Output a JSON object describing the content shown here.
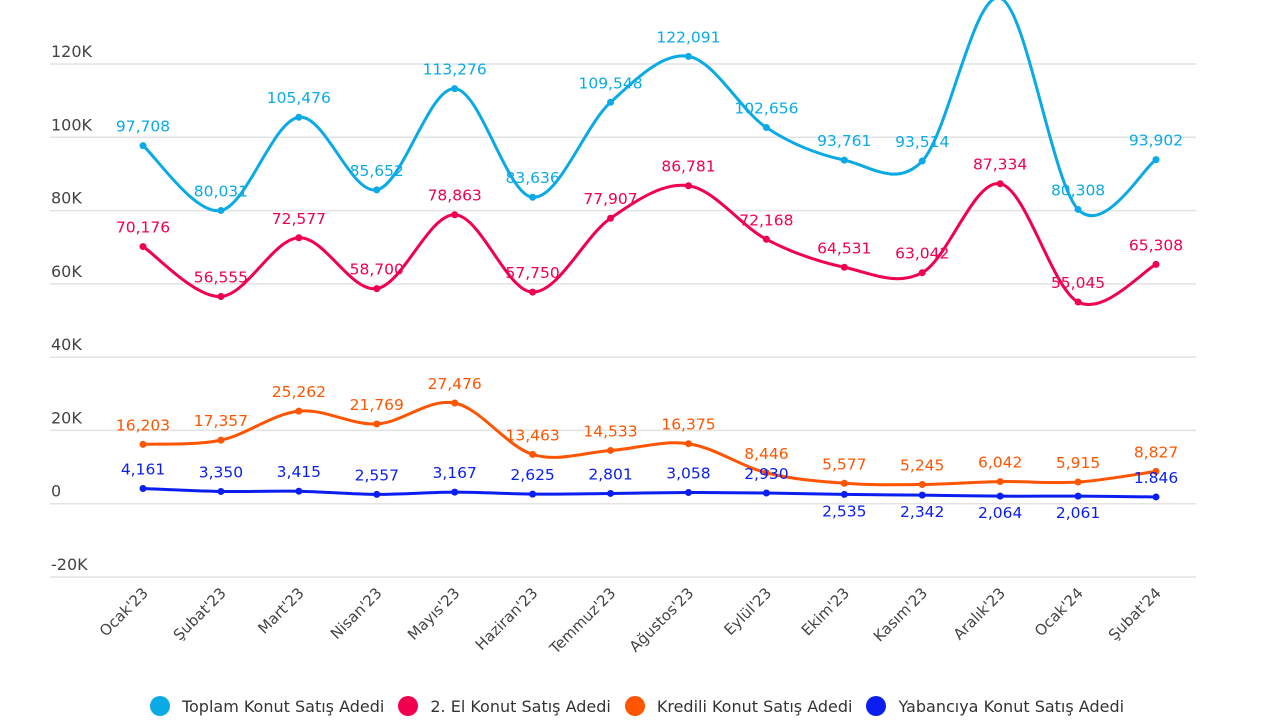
{
  "chart_data": {
    "type": "line",
    "title": "",
    "xlabel": "",
    "ylabel": "",
    "ylim": [
      -20000,
      120000
    ],
    "yticks": [
      {
        "value": -20000,
        "label": "-20K"
      },
      {
        "value": 0,
        "label": "0"
      },
      {
        "value": 20000,
        "label": "20K"
      },
      {
        "value": 40000,
        "label": "40K"
      },
      {
        "value": 60000,
        "label": "60K"
      },
      {
        "value": 80000,
        "label": "80K"
      },
      {
        "value": 100000,
        "label": "100K"
      },
      {
        "value": 120000,
        "label": "120K"
      }
    ],
    "grid": true,
    "legend_position": "bottom",
    "smooth": true,
    "categories": [
      "Ocak'23",
      "Şubat'23",
      "Mart'23",
      "Nisan'23",
      "Mayıs'23",
      "Haziran'23",
      "Temmuz'23",
      "Ağustos'23",
      "Eylül'23",
      "Ekim'23",
      "Kasım'23",
      "Aralık'23",
      "Ocak'24",
      "Şubat'24"
    ],
    "series": [
      {
        "name": "Toplam Konut Satış Adedi",
        "color": "#0aaae6",
        "values": [
          97708,
          80031,
          105476,
          85652,
          113276,
          83636,
          109548,
          122091,
          102656,
          93761,
          93514,
          138000,
          80308,
          93902
        ],
        "labels": [
          "97,708",
          "80,031",
          "105,476",
          "85,652",
          "113,276",
          "83,636",
          "109,548",
          "122,091",
          "102,656",
          "93,761",
          "93,514",
          null,
          "80,308",
          "93,902"
        ],
        "label_pos": [
          "above",
          "above",
          "above",
          "above",
          "above",
          "above",
          "above",
          "above",
          "above",
          "above",
          "above",
          "none",
          "above",
          "above"
        ],
        "note": "Aralık'23 value is clipped above the plot area and its label is not shown; value is an estimate."
      },
      {
        "name": "2. El Konut Satış Adedi",
        "color": "#f0004e",
        "values": [
          70176,
          56555,
          72577,
          58700,
          78863,
          57750,
          77907,
          86781,
          72168,
          64531,
          63042,
          87334,
          55045,
          65308
        ],
        "labels": [
          "70,176",
          "56,555",
          "72,577",
          "58,700",
          "78,863",
          "57,750",
          "77,907",
          "86,781",
          "72,168",
          "64,531",
          "63,042",
          "87,334",
          "55,045",
          "65,308"
        ],
        "label_pos": [
          "above",
          "above",
          "above",
          "above",
          "above",
          "above",
          "above",
          "above",
          "above",
          "above",
          "above",
          "above",
          "above",
          "above"
        ]
      },
      {
        "name": "Kredili Konut Satış Adedi",
        "color": "#ff5500",
        "values": [
          16203,
          17357,
          25262,
          21769,
          27476,
          13463,
          14533,
          16375,
          8446,
          5577,
          5245,
          6042,
          5915,
          8827
        ],
        "labels": [
          "16,203",
          "17,357",
          "25,262",
          "21,769",
          "27,476",
          "13,463",
          "14,533",
          "16,375",
          "8,446",
          "5,577",
          "5,245",
          "6,042",
          "5,915",
          "8,827"
        ],
        "label_pos": [
          "above",
          "above",
          "above",
          "above",
          "above",
          "above",
          "above",
          "above",
          "above",
          "above",
          "above",
          "above",
          "above",
          "above"
        ]
      },
      {
        "name": "Yabancıya Konut Satış Adedi",
        "color": "#0a1ef0",
        "values": [
          4161,
          3350,
          3415,
          2557,
          3167,
          2625,
          2801,
          3058,
          2930,
          2535,
          2342,
          2064,
          2061,
          1846
        ],
        "labels": [
          "4,161",
          "3,350",
          "3,415",
          "2,557",
          "3,167",
          "2,625",
          "2,801",
          "3,058",
          "2,930",
          "2,535",
          "2,342",
          "2,064",
          "2,061",
          "1.846"
        ],
        "label_pos": [
          "above",
          "above",
          "above",
          "above",
          "above",
          "above",
          "above",
          "above",
          "above",
          "below",
          "below",
          "below",
          "below",
          "above"
        ]
      }
    ]
  },
  "legend": {
    "items": [
      {
        "label": "Toplam Konut Satış Adedi",
        "color": "#0aaae6"
      },
      {
        "label": "2. El Konut Satış Adedi",
        "color": "#f0004e"
      },
      {
        "label": "Kredili Konut Satış Adedi",
        "color": "#ff5500"
      },
      {
        "label": "Yabancıya Konut Satış Adedi",
        "color": "#0a1ef0"
      }
    ]
  }
}
